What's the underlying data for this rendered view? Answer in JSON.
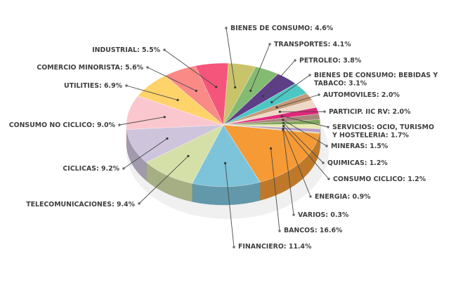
{
  "chart_data": {
    "type": "pie",
    "title": "",
    "slices": [
      {
        "name": "BANCOS",
        "value": 16.6,
        "label": "BANCOS: 16.6%",
        "color": "#f59a35"
      },
      {
        "name": "FINANCIERO",
        "value": 11.4,
        "label": "FINANCIERO: 11.4%",
        "color": "#7dc3da"
      },
      {
        "name": "TELECOMUNICACIONES",
        "value": 9.4,
        "label": "TELECOMUNICACIONES: 9.4%",
        "color": "#d5e0a8"
      },
      {
        "name": "CICLICAS",
        "value": 9.2,
        "label": "CICLICAS: 9.2%",
        "color": "#cec4dc"
      },
      {
        "name": "CONSUMO NO CICLICO",
        "value": 9.0,
        "label": "CONSUMO NO CICLICO: 9.0%",
        "color": "#fbc7cf"
      },
      {
        "name": "UTILITIES",
        "value": 6.9,
        "label": "UTILITIES: 6.9%",
        "color": "#fdd36a"
      },
      {
        "name": "COMERCIO MINORISTA",
        "value": 5.6,
        "label": "COMERCIO MINORISTA: 5.6%",
        "color": "#f98a86"
      },
      {
        "name": "INDUSTRIAL",
        "value": 5.5,
        "label": "INDUSTRIAL: 5.5%",
        "color": "#f5557a"
      },
      {
        "name": "BIENES DE CONSUMO",
        "value": 4.6,
        "label": "BIENES DE CONSUMO: 4.6%",
        "color": "#c9c46a"
      },
      {
        "name": "TRANSPORTES",
        "value": 4.1,
        "label": "TRANSPORTES: 4.1%",
        "color": "#84bb72"
      },
      {
        "name": "PETROLEO",
        "value": 3.8,
        "label": "PETROLEO: 3.8%",
        "color": "#5e3e87"
      },
      {
        "name": "BIENES DE CONSUMO: BEBIDAS Y TABACO",
        "value": 3.1,
        "label": [
          "BIENES DE CONSUMO: BEBIDAS Y",
          "TABACO: 3.1%"
        ],
        "color": "#4dc7c4"
      },
      {
        "name": "AUTOMOVILES",
        "value": 2.0,
        "label": "AUTOMOVILES: 2.0%",
        "color": "#c49a78"
      },
      {
        "name": "PARTICIP. IIC RV",
        "value": 2.0,
        "label": "PARTICIP. IIC RV: 2.0%",
        "color": "#eed8c8"
      },
      {
        "name": "SERVICIOS: OCIO, TURISMO Y HOSTELERIA",
        "value": 1.7,
        "label": [
          "SERVICIOS: OCIO, TURISMO",
          "Y HOSTELERIA: 1.7%"
        ],
        "color": "#e0287a"
      },
      {
        "name": "MINERAS",
        "value": 1.5,
        "label": "MINERAS: 1.5%",
        "color": "#a7877a"
      },
      {
        "name": "QUIMICAS",
        "value": 1.2,
        "label": "QUIMICAS: 1.2%",
        "color": "#7fa65c"
      },
      {
        "name": "CONSUMO CICLICO",
        "value": 1.2,
        "label": "CONSUMO CICLICO: 1.2%",
        "color": "#e8eab0"
      },
      {
        "name": "ENERGIA",
        "value": 0.9,
        "label": "ENERGIA: 0.9%",
        "color": "#b89ec6"
      },
      {
        "name": "VARIOS",
        "value": 0.3,
        "label": "VARIOS: 0.3%",
        "color": "#cfd0b0"
      }
    ],
    "legend": "none",
    "style": "3d-tilted-pie-with-callout-labels"
  }
}
